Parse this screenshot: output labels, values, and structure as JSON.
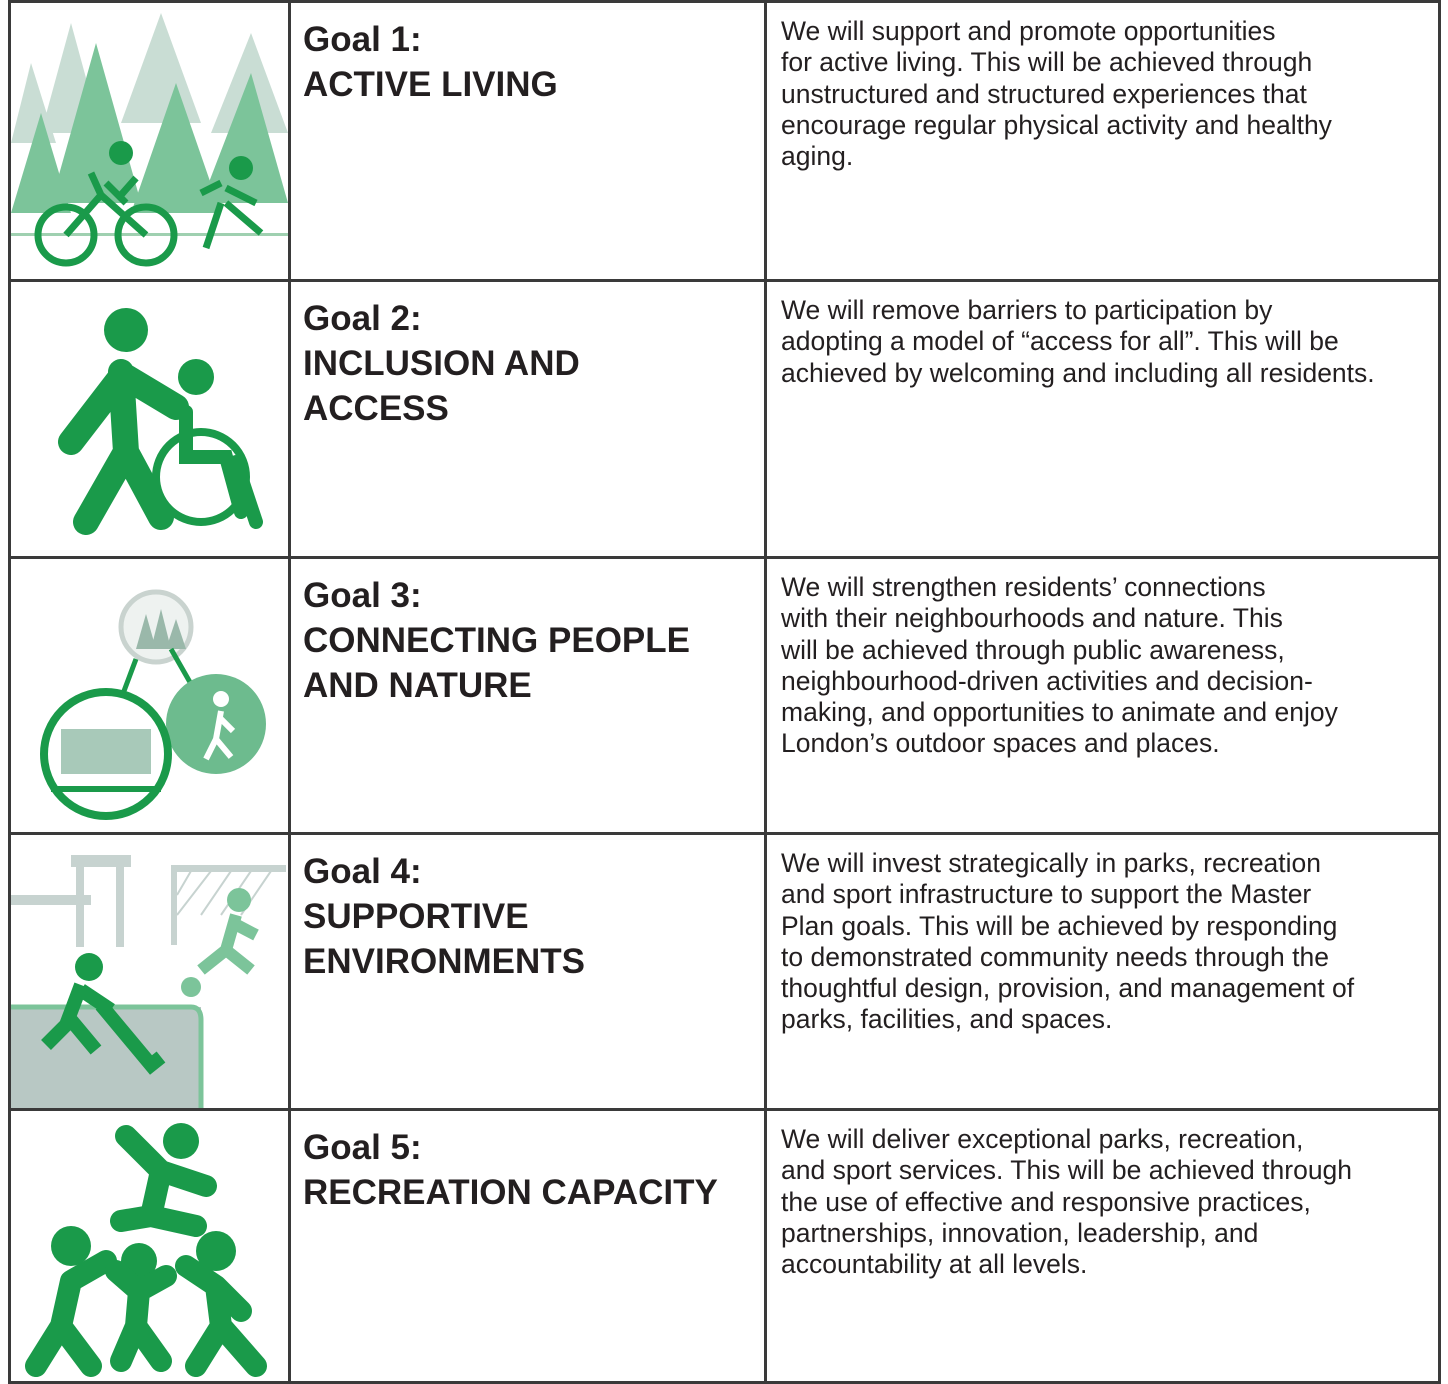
{
  "goals": [
    {
      "label": "Goal 1:",
      "name": [
        "ACTIVE LIVING"
      ],
      "description": [
        "We will support and promote opportunities",
        "for active living. This will be achieved through",
        "unstructured and structured experiences that",
        "encourage regular physical activity and healthy",
        "aging."
      ]
    },
    {
      "label": "Goal 2:",
      "name": [
        "INCLUSION AND",
        "ACCESS"
      ],
      "description": [
        "We will remove barriers to participation by",
        "adopting a model of “access for all”. This will be",
        "achieved by welcoming and including all residents."
      ]
    },
    {
      "label": "Goal 3:",
      "name": [
        "CONNECTING PEOPLE",
        "AND NATURE"
      ],
      "description": [
        "We will strengthen residents’ connections",
        "with their neighbourhoods and nature. This",
        "will be achieved through public awareness,",
        "neighbourhood-driven activities and decision-",
        "making, and opportunities to animate and enjoy",
        "London’s outdoor spaces and places."
      ]
    },
    {
      "label": "Goal 4:",
      "name": [
        "SUPPORTIVE",
        "ENVIRONMENTS"
      ],
      "description": [
        "We will invest strategically in parks, recreation",
        "and sport infrastructure to support the Master",
        "Plan goals. This will be achieved by responding",
        "to demonstrated community needs through the",
        "thoughtful design, provision, and management of",
        "parks, facilities, and spaces."
      ]
    },
    {
      "label": "Goal 5:",
      "name": [
        "RECREATION CAPACITY"
      ],
      "description": [
        "We will deliver exceptional parks, recreation,",
        "and sport services. This will be achieved through",
        "the use of effective and responsive practices,",
        "partnerships, innovation, leadership, and",
        "accountability at all levels."
      ]
    }
  ]
}
